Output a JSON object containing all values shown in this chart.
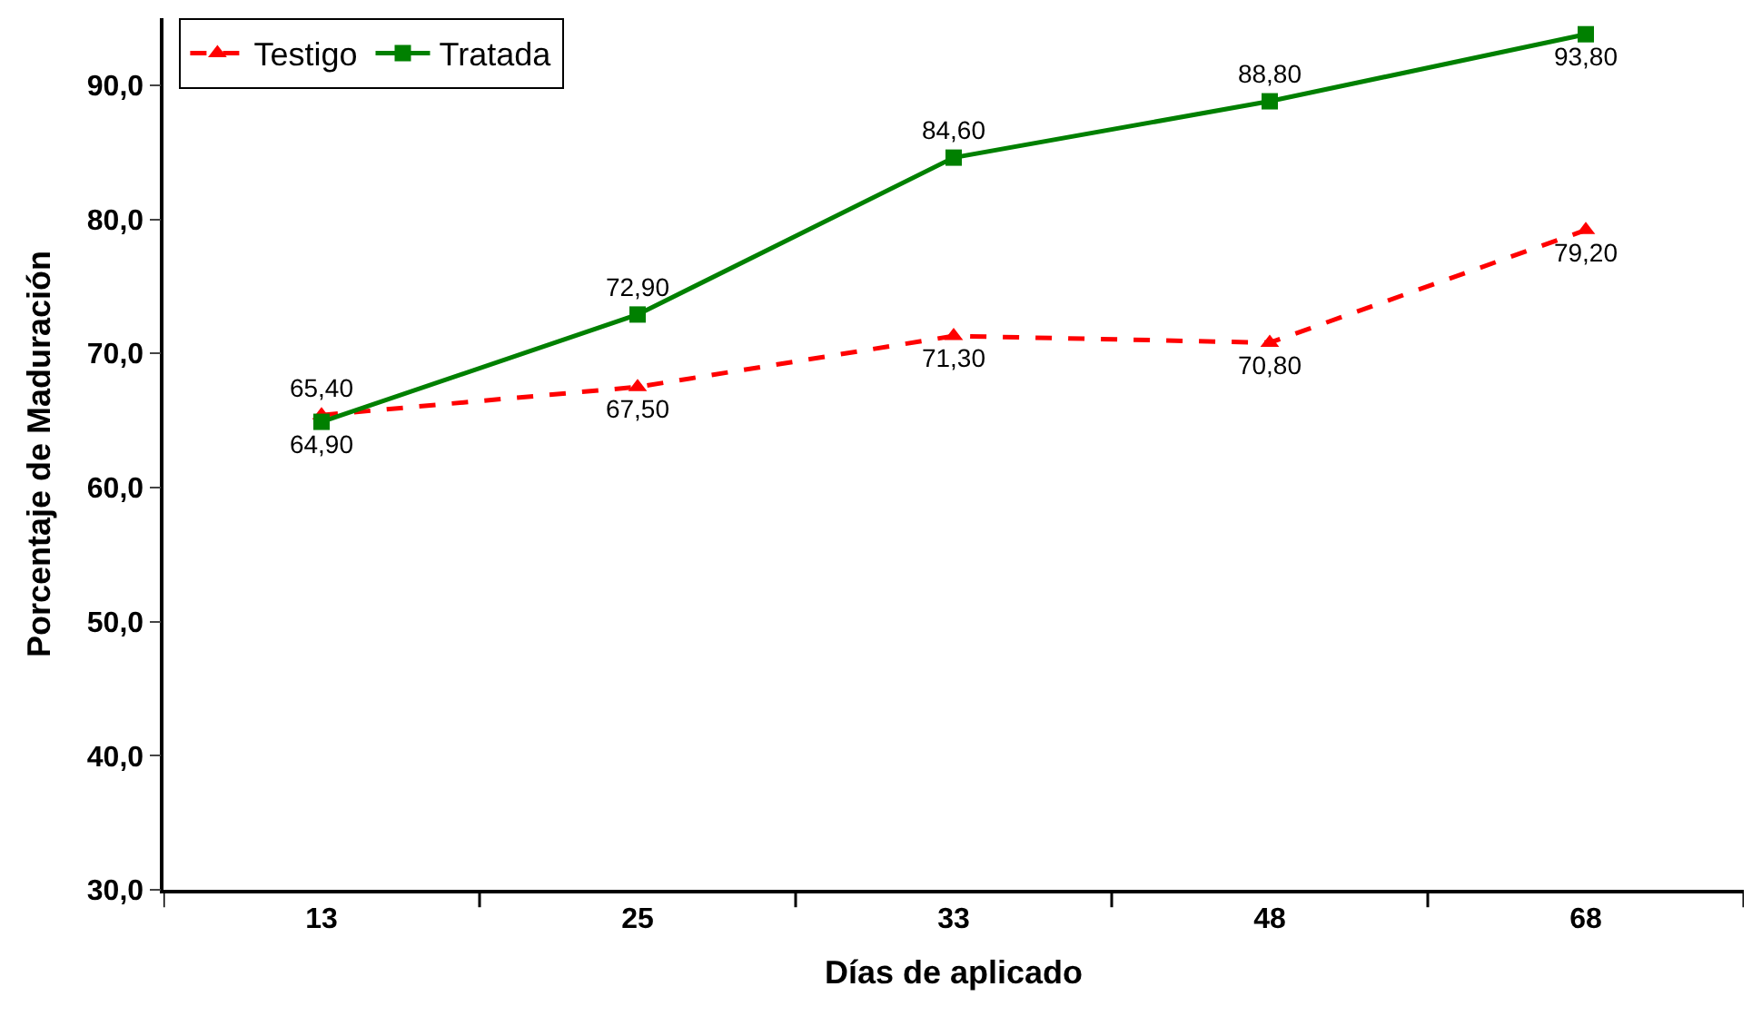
{
  "chart_data": {
    "type": "line",
    "xlabel": "Días de aplicado",
    "ylabel": "Porcentaje de Maduración",
    "categories": [
      "13",
      "25",
      "33",
      "48",
      "68"
    ],
    "series": [
      {
        "name": "Testigo",
        "color": "#ff0000",
        "marker": "triangle",
        "line_style": "dashed",
        "values": [
          65.4,
          67.5,
          71.3,
          70.8,
          79.2
        ],
        "value_labels": [
          "65,40",
          "67,50",
          "71,30",
          "70,80",
          "79,20"
        ]
      },
      {
        "name": "Tratada",
        "color": "#008000",
        "marker": "square",
        "line_style": "solid",
        "values": [
          64.9,
          72.9,
          84.6,
          88.8,
          93.8
        ],
        "value_labels": [
          "64,90",
          "72,90",
          "84,60",
          "88,80",
          "93,80"
        ]
      }
    ],
    "ylim": [
      30,
      95
    ],
    "yticks": [
      {
        "value": 30,
        "label": "30,0"
      },
      {
        "value": 40,
        "label": "40,0"
      },
      {
        "value": 50,
        "label": "50,0"
      },
      {
        "value": 60,
        "label": "60,0"
      },
      {
        "value": 70,
        "label": "70,0"
      },
      {
        "value": 80,
        "label": "80,0"
      },
      {
        "value": 90,
        "label": "90,0"
      }
    ],
    "legend": "top left"
  }
}
